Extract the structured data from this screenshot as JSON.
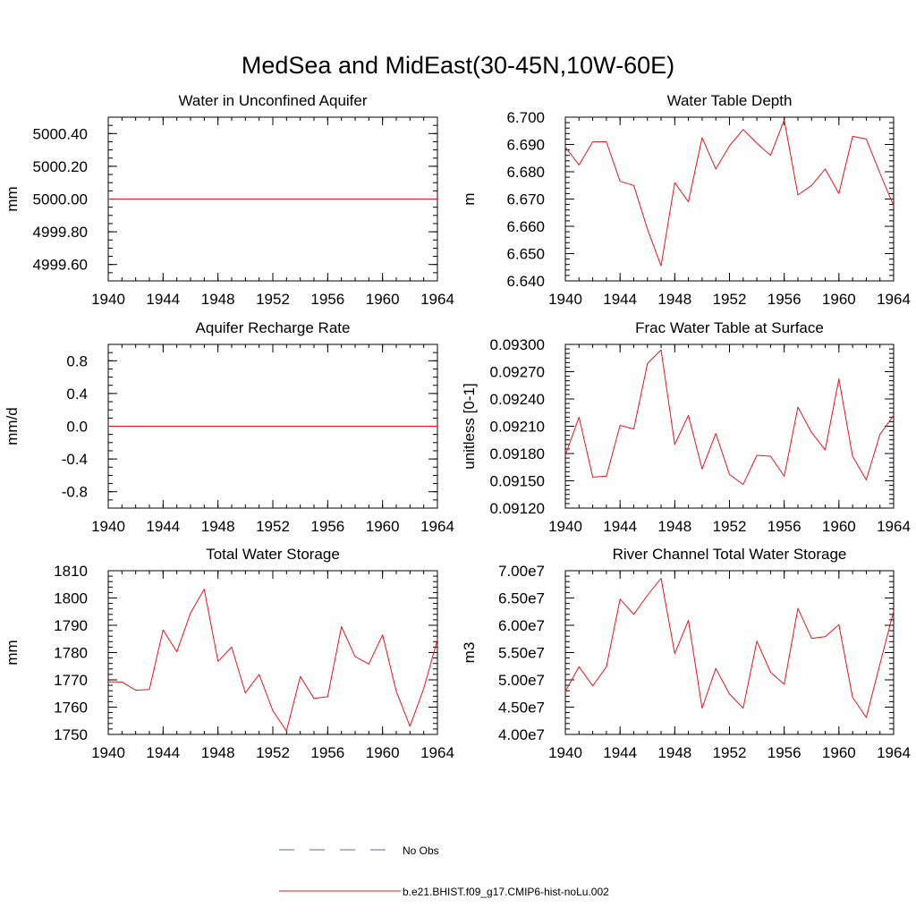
{
  "figure": {
    "title": "MedSea and MidEast(30-45N,10W-60E)",
    "line_color": "#e8141c",
    "obs_color": "#5a6ea8",
    "legend": [
      {
        "label": "No Obs",
        "style": "dashed",
        "color": "#5a6ea8"
      },
      {
        "label": "b.e21.BHIST.f09_g17.CMIP6-hist-noLu.002",
        "style": "solid",
        "color": "#e8141c"
      }
    ]
  },
  "chart_data": [
    {
      "type": "line",
      "title": "Water in Unconfined Aquifer",
      "ylabel": "mm",
      "xlim": [
        1940,
        1964
      ],
      "ylim": [
        4999.5,
        5000.5
      ],
      "xticks": [
        1940,
        1944,
        1948,
        1952,
        1956,
        1960,
        1964
      ],
      "xtick_labels": [
        "1940",
        "1944",
        "1948",
        "1952",
        "1956",
        "1960",
        "1964"
      ],
      "yticks": [
        4999.6,
        4999.8,
        5000.0,
        5000.2,
        5000.4
      ],
      "ytick_labels": [
        "4999.60",
        "4999.80",
        "5000.00",
        "5000.20",
        "5000.40"
      ],
      "yminor": 0.05,
      "series": [
        {
          "x": [
            1940,
            1964
          ],
          "values": [
            5000.0,
            5000.0
          ]
        }
      ]
    },
    {
      "type": "line",
      "title": "Water Table Depth",
      "ylabel": "m",
      "xlim": [
        1940,
        1964
      ],
      "ylim": [
        6.64,
        6.7
      ],
      "xticks": [
        1940,
        1944,
        1948,
        1952,
        1956,
        1960,
        1964
      ],
      "xtick_labels": [
        "1940",
        "1944",
        "1948",
        "1952",
        "1956",
        "1960",
        "1964"
      ],
      "yticks": [
        6.64,
        6.65,
        6.66,
        6.67,
        6.68,
        6.69,
        6.7
      ],
      "ytick_labels": [
        "6.640",
        "6.650",
        "6.660",
        "6.670",
        "6.680",
        "6.690",
        "6.700"
      ],
      "yminor": 0.002,
      "series": [
        {
          "x": [
            1940,
            1941,
            1942,
            1943,
            1944,
            1945,
            1946,
            1947,
            1948,
            1949,
            1950,
            1951,
            1952,
            1953,
            1954,
            1955,
            1956,
            1957,
            1958,
            1959,
            1960,
            1961,
            1962,
            1963,
            1964
          ],
          "values": [
            6.689,
            6.6825,
            6.691,
            6.691,
            6.6765,
            6.675,
            6.659,
            6.6455,
            6.676,
            6.669,
            6.6925,
            6.681,
            6.6895,
            6.6955,
            6.6905,
            6.686,
            6.699,
            6.6715,
            6.675,
            6.681,
            6.672,
            6.693,
            6.692,
            6.6795,
            6.6675
          ]
        }
      ]
    },
    {
      "type": "line",
      "title": "Aquifer Recharge Rate",
      "ylabel": "mm/d",
      "xlim": [
        1940,
        1964
      ],
      "ylim": [
        -1.0,
        1.0
      ],
      "xticks": [
        1940,
        1944,
        1948,
        1952,
        1956,
        1960,
        1964
      ],
      "xtick_labels": [
        "1940",
        "1944",
        "1948",
        "1952",
        "1956",
        "1960",
        "1964"
      ],
      "yticks": [
        -0.8,
        -0.4,
        0.0,
        0.4,
        0.8
      ],
      "ytick_labels": [
        "-0.8",
        "-0.4",
        "0.0",
        "0.4",
        "0.8"
      ],
      "yminor": 0.1,
      "series": [
        {
          "x": [
            1940,
            1964
          ],
          "values": [
            0.0,
            0.0
          ]
        }
      ]
    },
    {
      "type": "line",
      "title": "Frac Water Table at Surface",
      "ylabel": "unitless [0-1]",
      "xlim": [
        1940,
        1964
      ],
      "ylim": [
        0.0912,
        0.093
      ],
      "xticks": [
        1940,
        1944,
        1948,
        1952,
        1956,
        1960,
        1964
      ],
      "xtick_labels": [
        "1940",
        "1944",
        "1948",
        "1952",
        "1956",
        "1960",
        "1964"
      ],
      "yticks": [
        0.0912,
        0.0915,
        0.0918,
        0.0921,
        0.0924,
        0.0927,
        0.093
      ],
      "ytick_labels": [
        "0.09120",
        "0.09150",
        "0.09180",
        "0.09210",
        "0.09240",
        "0.09270",
        "0.09300"
      ],
      "yminor": 5e-05,
      "series": [
        {
          "x": [
            1940,
            1941,
            1942,
            1943,
            1944,
            1945,
            1946,
            1947,
            1948,
            1949,
            1950,
            1951,
            1952,
            1953,
            1954,
            1955,
            1956,
            1957,
            1958,
            1959,
            1960,
            1961,
            1962,
            1963,
            1964
          ],
          "values": [
            0.09178,
            0.0922,
            0.09154,
            0.09155,
            0.09211,
            0.09207,
            0.09279,
            0.09294,
            0.0919,
            0.09222,
            0.09163,
            0.09202,
            0.09157,
            0.09146,
            0.09178,
            0.09177,
            0.09155,
            0.09231,
            0.09203,
            0.09184,
            0.09262,
            0.09177,
            0.09151,
            0.09201,
            0.09222
          ]
        }
      ]
    },
    {
      "type": "line",
      "title": "Total Water Storage",
      "ylabel": "mm",
      "xlim": [
        1940,
        1964
      ],
      "ylim": [
        1750,
        1810
      ],
      "xticks": [
        1940,
        1944,
        1948,
        1952,
        1956,
        1960,
        1964
      ],
      "xtick_labels": [
        "1940",
        "1944",
        "1948",
        "1952",
        "1956",
        "1960",
        "1964"
      ],
      "yticks": [
        1750,
        1760,
        1770,
        1780,
        1790,
        1800,
        1810
      ],
      "ytick_labels": [
        "1750",
        "1760",
        "1770",
        "1780",
        "1790",
        "1800",
        "1810"
      ],
      "yminor": 2,
      "series": [
        {
          "x": [
            1940,
            1941,
            1942,
            1943,
            1944,
            1945,
            1946,
            1947,
            1948,
            1949,
            1950,
            1951,
            1952,
            1953,
            1954,
            1955,
            1956,
            1957,
            1958,
            1959,
            1960,
            1961,
            1962,
            1963,
            1964
          ],
          "values": [
            1769.3,
            1769.2,
            1766.2,
            1766.5,
            1788.3,
            1780.3,
            1794.5,
            1803.2,
            1776.8,
            1782.0,
            1765.2,
            1772.0,
            1758.7,
            1751.2,
            1771.2,
            1763.2,
            1763.8,
            1789.5,
            1778.5,
            1775.8,
            1786.5,
            1765.8,
            1753.0,
            1766.8,
            1784.8
          ]
        }
      ]
    },
    {
      "type": "line",
      "title": "River Channel Total Water Storage",
      "ylabel": "m3",
      "xlim": [
        1940,
        1964
      ],
      "ylim": [
        40000000,
        70000000
      ],
      "xticks": [
        1940,
        1944,
        1948,
        1952,
        1956,
        1960,
        1964
      ],
      "xtick_labels": [
        "1940",
        "1944",
        "1948",
        "1952",
        "1956",
        "1960",
        "1964"
      ],
      "yticks": [
        40000000,
        45000000,
        50000000,
        55000000,
        60000000,
        65000000,
        70000000
      ],
      "ytick_labels": [
        "4.00e7",
        "4.50e7",
        "5.00e7",
        "5.50e7",
        "6.00e7",
        "6.50e7",
        "7.00e7"
      ],
      "yminor": 1000000,
      "series": [
        {
          "x": [
            1940,
            1941,
            1942,
            1943,
            1944,
            1945,
            1946,
            1947,
            1948,
            1949,
            1950,
            1951,
            1952,
            1953,
            1954,
            1955,
            1956,
            1957,
            1958,
            1959,
            1960,
            1961,
            1962,
            1963,
            1964
          ],
          "values": [
            47900000,
            52400000,
            48900000,
            52400000,
            64800000,
            62000000,
            65500000,
            68600000,
            54800000,
            60900000,
            44800000,
            52100000,
            47400000,
            44800000,
            57100000,
            51400000,
            49200000,
            63100000,
            57600000,
            57900000,
            60100000,
            46800000,
            43100000,
            52900000,
            62600000
          ]
        }
      ]
    }
  ]
}
